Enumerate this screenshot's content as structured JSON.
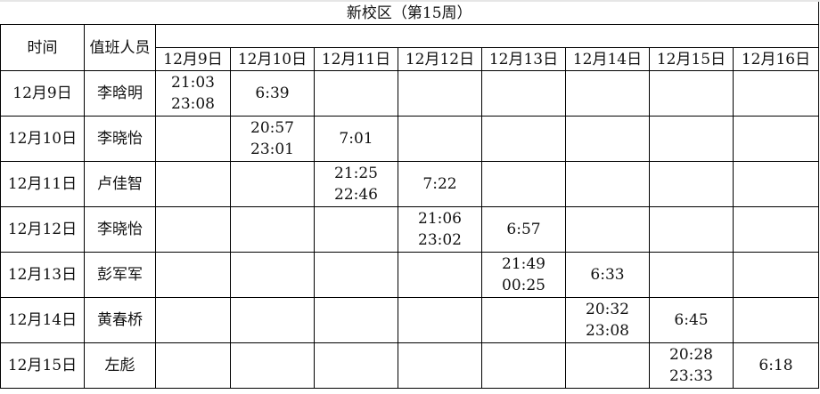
{
  "title": "新校区（第15周）",
  "headers": {
    "time": "时间",
    "staff": "值班人员"
  },
  "dates": [
    "12月9日",
    "12月10日",
    "12月11日",
    "12月12日",
    "12月13日",
    "12月14日",
    "12月15日",
    "12月16日"
  ],
  "rows": [
    {
      "date": "12月9日",
      "name": "李晗明",
      "cells": [
        [
          "21:03",
          "23:08"
        ],
        [
          "6:39"
        ],
        [],
        [],
        [],
        [],
        [],
        []
      ]
    },
    {
      "date": "12月10日",
      "name": "李晓怡",
      "cells": [
        [],
        [
          "20:57",
          "23:01"
        ],
        [
          "7:01"
        ],
        [],
        [],
        [],
        [],
        []
      ]
    },
    {
      "date": "12月11日",
      "name": "卢佳智",
      "cells": [
        [],
        [],
        [
          "21:25",
          "22:46"
        ],
        [
          "7:22"
        ],
        [],
        [],
        [],
        []
      ]
    },
    {
      "date": "12月12日",
      "name": "李晓怡",
      "cells": [
        [],
        [],
        [],
        [
          "21:06",
          "23:02"
        ],
        [
          "6:57"
        ],
        [],
        [],
        []
      ]
    },
    {
      "date": "12月13日",
      "name": "彭军军",
      "cells": [
        [],
        [],
        [],
        [],
        [
          "21:49",
          "00:25"
        ],
        [
          "6:33"
        ],
        [],
        []
      ]
    },
    {
      "date": "12月14日",
      "name": "黄春桥",
      "cells": [
        [],
        [],
        [],
        [],
        [],
        [
          "20:32",
          "23:08"
        ],
        [
          "6:45"
        ],
        []
      ]
    },
    {
      "date": "12月15日",
      "name": "左彪",
      "cells": [
        [],
        [],
        [],
        [],
        [],
        [],
        [
          "20:28",
          "23:33"
        ],
        [
          "6:18"
        ]
      ]
    }
  ]
}
